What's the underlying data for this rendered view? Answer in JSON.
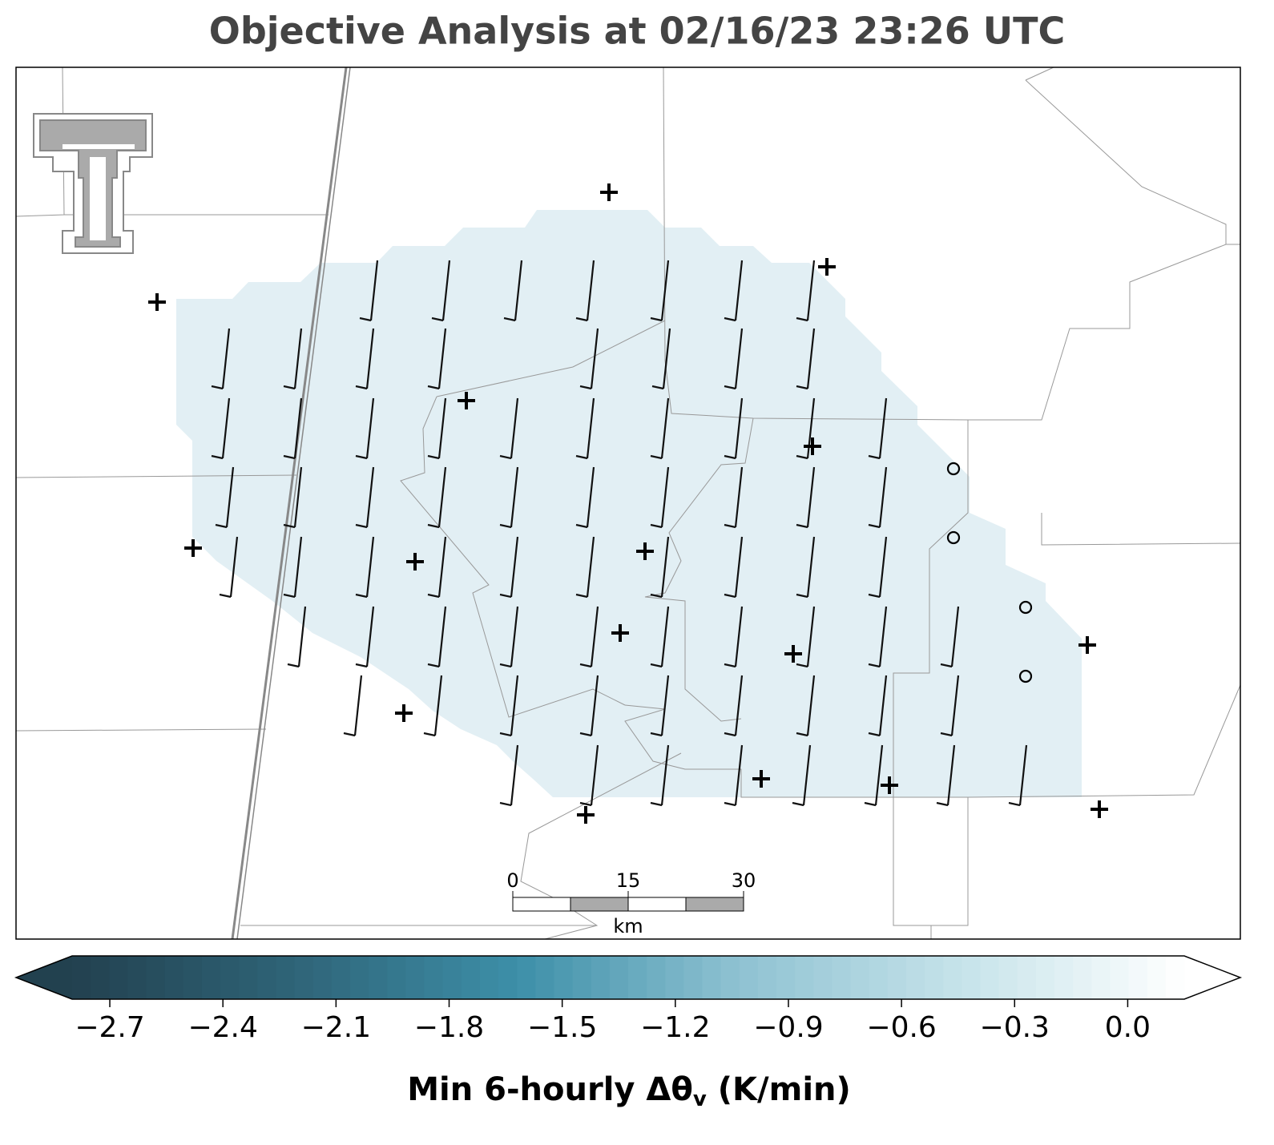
{
  "title": "Objective Analysis at 02/16/23 23:26 UTC",
  "colorbar": {
    "label": {
      "text": "Min 6-hourly Δθ",
      "subscript": "v",
      "suffix": "(K/min)"
    },
    "lim": [
      -2.8,
      0.15
    ],
    "colors": [
      "#22414f",
      "#2f6478",
      "#3d8fa8",
      "#8fc2d2",
      "#c6e3ea",
      "#ffffff"
    ],
    "ticks": [
      {
        "value": -2.7,
        "label": "−2.7"
      },
      {
        "value": -2.4,
        "label": "−2.4"
      },
      {
        "value": -2.1,
        "label": "−2.1"
      },
      {
        "value": -1.8,
        "label": "−1.8"
      },
      {
        "value": -1.5,
        "label": "−1.5"
      },
      {
        "value": -1.2,
        "label": "−1.2"
      },
      {
        "value": -0.9,
        "label": "−0.9"
      },
      {
        "value": -0.6,
        "label": "−0.6"
      },
      {
        "value": -0.3,
        "label": "−0.3"
      },
      {
        "value": 0,
        "label": "0.0"
      }
    ]
  },
  "scale_bar": {
    "lim": [
      0,
      30
    ],
    "ticks": [
      0,
      15,
      30
    ],
    "unit": "km"
  }
}
